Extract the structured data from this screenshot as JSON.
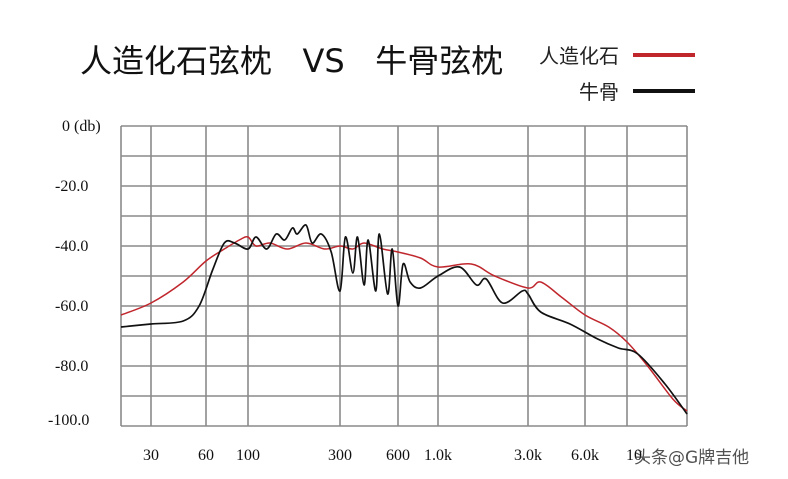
{
  "chart_data": {
    "type": "line",
    "title": "人造化石弦枕   VS   牛骨弦枕",
    "xlabel": "",
    "ylabel": "0 (db)",
    "xscale": "log",
    "ylim": [
      -100,
      0
    ],
    "y_ticks": [
      "0 (db)",
      "-20.0",
      "-40.0",
      "-60.0",
      "-80.0",
      "-100.0"
    ],
    "x_ticks": [
      "30",
      "60",
      "100",
      "300",
      "600",
      "1.0k",
      "3.0k",
      "6.0k",
      "10.0k"
    ],
    "grid": true,
    "legend_position": "top-right",
    "series": [
      {
        "name": "人造化石",
        "color": "#c0272d",
        "points": [
          [
            20,
            -63
          ],
          [
            30,
            -59
          ],
          [
            45,
            -52
          ],
          [
            60,
            -45
          ],
          [
            75,
            -41
          ],
          [
            90,
            -38
          ],
          [
            100,
            -37
          ],
          [
            110,
            -40
          ],
          [
            130,
            -39
          ],
          [
            160,
            -41
          ],
          [
            200,
            -39
          ],
          [
            250,
            -41
          ],
          [
            300,
            -40
          ],
          [
            350,
            -41
          ],
          [
            400,
            -39
          ],
          [
            500,
            -41
          ],
          [
            600,
            -42
          ],
          [
            800,
            -44
          ],
          [
            1000,
            -47
          ],
          [
            1500,
            -46
          ],
          [
            2000,
            -50
          ],
          [
            3000,
            -54
          ],
          [
            3500,
            -52
          ],
          [
            4500,
            -57
          ],
          [
            6000,
            -63
          ],
          [
            8000,
            -67
          ],
          [
            10000,
            -72
          ],
          [
            12000,
            -80
          ],
          [
            15000,
            -91
          ],
          [
            17000,
            -95
          ]
        ]
      },
      {
        "name": "牛骨",
        "color": "#111111",
        "points": [
          [
            20,
            -67
          ],
          [
            30,
            -66
          ],
          [
            45,
            -65
          ],
          [
            55,
            -60
          ],
          [
            65,
            -48
          ],
          [
            75,
            -39
          ],
          [
            85,
            -39
          ],
          [
            100,
            -41
          ],
          [
            110,
            -37
          ],
          [
            125,
            -41
          ],
          [
            140,
            -36
          ],
          [
            155,
            -38
          ],
          [
            170,
            -34
          ],
          [
            180,
            -36
          ],
          [
            200,
            -33
          ],
          [
            215,
            -39
          ],
          [
            240,
            -36
          ],
          [
            270,
            -42
          ],
          [
            300,
            -55
          ],
          [
            320,
            -37
          ],
          [
            350,
            -49
          ],
          [
            370,
            -37
          ],
          [
            400,
            -53
          ],
          [
            420,
            -38
          ],
          [
            460,
            -55
          ],
          [
            480,
            -36
          ],
          [
            530,
            -56
          ],
          [
            560,
            -41
          ],
          [
            600,
            -60
          ],
          [
            640,
            -46
          ],
          [
            700,
            -52
          ],
          [
            800,
            -54
          ],
          [
            1000,
            -50
          ],
          [
            1300,
            -47
          ],
          [
            1600,
            -53
          ],
          [
            1800,
            -51
          ],
          [
            2200,
            -59
          ],
          [
            2800,
            -55
          ],
          [
            3000,
            -56
          ],
          [
            3500,
            -62
          ],
          [
            5000,
            -66
          ],
          [
            7000,
            -71
          ],
          [
            9000,
            -74
          ],
          [
            11000,
            -76
          ],
          [
            14000,
            -86
          ],
          [
            17000,
            -96
          ]
        ]
      }
    ]
  },
  "legend": {
    "items": [
      {
        "label": "人造化石",
        "color": "#c0272d"
      },
      {
        "label": "牛骨",
        "color": "#111111"
      }
    ]
  },
  "watermark": "头条@G牌吉他"
}
